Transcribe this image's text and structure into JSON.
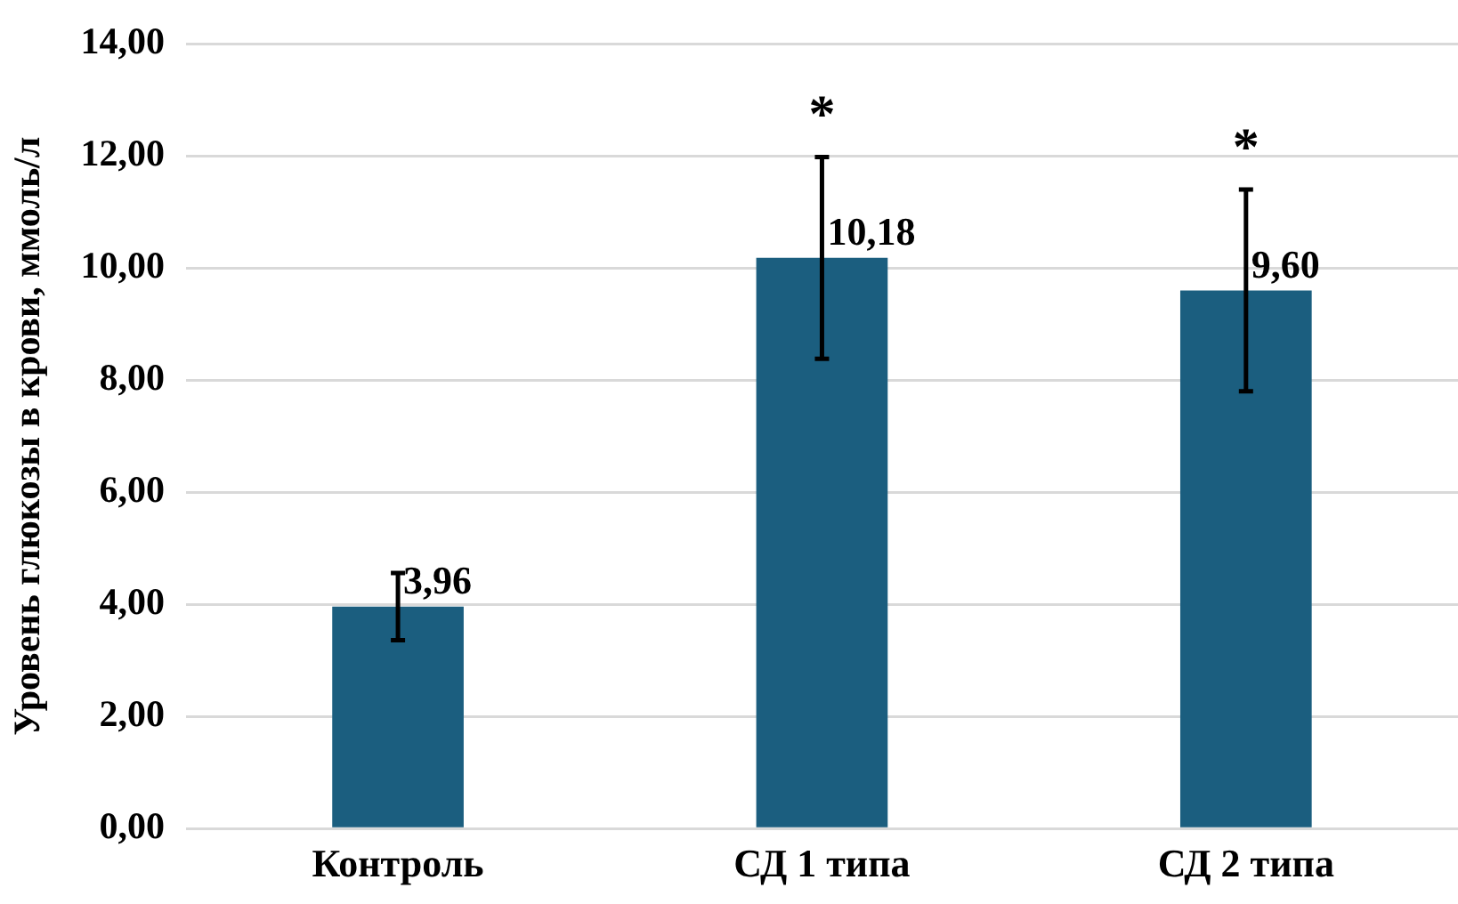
{
  "chart_data": {
    "type": "bar",
    "ylabel": "Уровень глюкозы в крови, ммоль/л",
    "categories": [
      "Контроль",
      "СД 1 типа",
      "СД 2 типа"
    ],
    "values": [
      3.96,
      10.18,
      9.6
    ],
    "color": "#1b5e7f",
    "errors": [
      0.6,
      1.8,
      1.8
    ],
    "value_labels": [
      "3,96",
      "10,18",
      "9,60"
    ],
    "ylim": [
      0,
      14
    ],
    "yticks": [
      {
        "value": 0,
        "label": "0,00"
      },
      {
        "value": 2,
        "label": "2,00"
      },
      {
        "value": 4,
        "label": "4,00"
      },
      {
        "value": 6,
        "label": "6,00"
      },
      {
        "value": 8,
        "label": "8,00"
      },
      {
        "value": 10,
        "label": "10,00"
      },
      {
        "value": 12,
        "label": "12,00"
      },
      {
        "value": 14,
        "label": "14,00"
      }
    ],
    "annotations": [
      "*",
      "*"
    ],
    "grid": "y",
    "legend": false
  }
}
